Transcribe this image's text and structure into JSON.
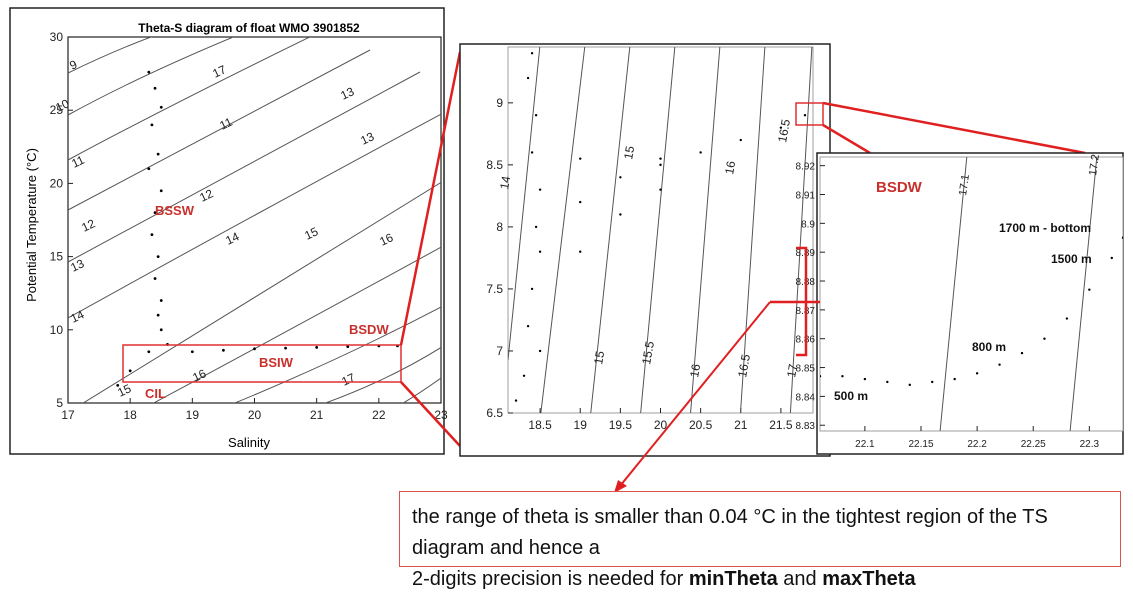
{
  "chart_data": [
    {
      "type": "scatter",
      "title": "Theta-S diagram of float WMO 3901852",
      "xlabel": "Salinity",
      "ylabel": "Potential Temperature (°C)",
      "xlim": [
        17,
        23
      ],
      "ylim": [
        5,
        30
      ],
      "xticks": [
        "17",
        "18",
        "19",
        "20",
        "21",
        "22",
        "23"
      ],
      "yticks": [
        "5",
        "10",
        "15",
        "20",
        "25",
        "30"
      ],
      "density_isolines": [
        "9",
        "10",
        "11",
        "12",
        "13",
        "14",
        "15",
        "16",
        "17",
        "11",
        "12",
        "13",
        "13",
        "14",
        "15",
        "16",
        "17",
        "14",
        "15",
        "16"
      ],
      "annotations": [
        "BSSW",
        "BSDW",
        "BSIW",
        "CIL"
      ],
      "zoom_box": {
        "x": [
          18,
          22.5
        ],
        "y": [
          6.5,
          9.2
        ]
      },
      "series": [
        {
          "color": "#000000",
          "points": [
            [
              18.3,
              27.6
            ],
            [
              18.4,
              26.5
            ],
            [
              18.5,
              25.2
            ],
            [
              18.35,
              24.0
            ],
            [
              18.45,
              22.0
            ],
            [
              18.3,
              21.0
            ],
            [
              18.5,
              19.5
            ],
            [
              18.4,
              18.0
            ],
            [
              18.35,
              16.5
            ],
            [
              18.45,
              15.0
            ],
            [
              18.4,
              13.5
            ],
            [
              18.5,
              12.0
            ],
            [
              18.45,
              11.0
            ],
            [
              18.5,
              10.0
            ],
            [
              18.6,
              9.0
            ],
            [
              18.3,
              8.5
            ],
            [
              18.0,
              7.2
            ],
            [
              17.8,
              6.2
            ],
            [
              19.0,
              8.5
            ],
            [
              19.5,
              8.6
            ],
            [
              20.0,
              8.7
            ],
            [
              20.5,
              8.75
            ],
            [
              21.0,
              8.8
            ],
            [
              21.5,
              8.85
            ],
            [
              22.0,
              8.9
            ],
            [
              22.3,
              8.9
            ]
          ]
        }
      ]
    },
    {
      "type": "scatter",
      "xlim": [
        18.1,
        21.9
      ],
      "ylim": [
        6.5,
        9.45
      ],
      "xticks": [
        "18.5",
        "19",
        "19.5",
        "20",
        "20.5",
        "21",
        "21.5"
      ],
      "yticks": [
        "6.5",
        "7",
        "7.5",
        "8",
        "8.5",
        "9"
      ],
      "density_isolines": [
        "14",
        "15",
        "15.5",
        "16",
        "16.5",
        "17",
        "15",
        "16",
        "16.5"
      ],
      "series": [
        {
          "color": "#000000",
          "points": [
            [
              18.4,
              9.4
            ],
            [
              18.35,
              9.2
            ],
            [
              18.45,
              8.9
            ],
            [
              18.4,
              8.6
            ],
            [
              18.5,
              8.3
            ],
            [
              18.45,
              8.0
            ],
            [
              18.5,
              7.8
            ],
            [
              18.4,
              7.5
            ],
            [
              18.35,
              7.2
            ],
            [
              18.5,
              7.0
            ],
            [
              18.3,
              6.8
            ],
            [
              18.2,
              6.6
            ],
            [
              19.0,
              8.2
            ],
            [
              19.5,
              8.4
            ],
            [
              20.0,
              8.5
            ],
            [
              20.5,
              8.6
            ],
            [
              21.0,
              8.7
            ],
            [
              21.5,
              8.8
            ],
            [
              21.8,
              8.9
            ],
            [
              19.0,
              7.8
            ],
            [
              19.5,
              8.1
            ],
            [
              20.0,
              8.3
            ],
            [
              19.0,
              8.55
            ],
            [
              20.0,
              8.55
            ]
          ]
        }
      ]
    },
    {
      "type": "scatter",
      "xlim": [
        22.06,
        22.33
      ],
      "ylim": [
        8.828,
        8.923
      ],
      "xticks": [
        "22.1",
        "22.15",
        "22.2",
        "22.25",
        "22.3"
      ],
      "yticks": [
        "8.83",
        "8.84",
        "8.85",
        "8.86",
        "8.87",
        "8.88",
        "8.89",
        "8.9",
        "8.91",
        "8.92"
      ],
      "density_isolines": [
        "17.1",
        "17.2"
      ],
      "annotations": [
        "BSDW",
        "1700 m - bottom",
        "1500 m",
        "800 m",
        "500 m"
      ],
      "series": [
        {
          "color": "#000000",
          "points": [
            [
              22.06,
              8.847
            ],
            [
              22.08,
              8.847
            ],
            [
              22.1,
              8.846
            ],
            [
              22.12,
              8.845
            ],
            [
              22.14,
              8.844
            ],
            [
              22.16,
              8.845
            ],
            [
              22.18,
              8.846
            ],
            [
              22.2,
              8.848
            ],
            [
              22.22,
              8.851
            ],
            [
              22.24,
              8.855
            ],
            [
              22.26,
              8.86
            ],
            [
              22.28,
              8.867
            ],
            [
              22.3,
              8.877
            ],
            [
              22.32,
              8.888
            ],
            [
              22.33,
              8.895
            ]
          ]
        }
      ]
    }
  ],
  "caption": {
    "line1": "the range of theta is smaller than 0.04 °C in the tightest region of the TS diagram and hence a",
    "line2_prefix": "2-digits precision is needed for ",
    "bold1": "minTheta",
    "mid": " and ",
    "bold2": "maxTheta"
  }
}
